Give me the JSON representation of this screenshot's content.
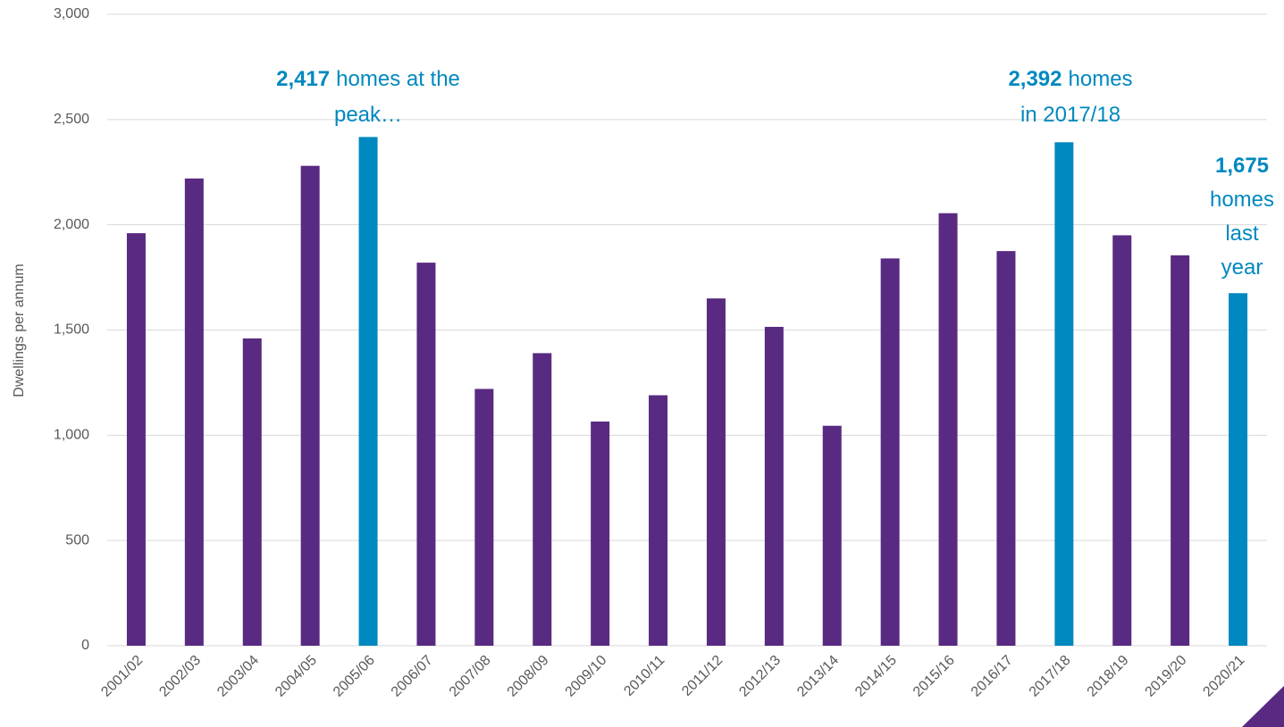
{
  "chart_data": {
    "type": "bar",
    "y_label": "Dwellings per annum",
    "categories": [
      "2001/02",
      "2002/03",
      "2003/04",
      "2004/05",
      "2005/06",
      "2006/07",
      "2007/08",
      "2008/09",
      "2009/10",
      "2010/11",
      "2011/12",
      "2012/13",
      "2013/14",
      "2014/15",
      "2015/16",
      "2016/17",
      "2017/18",
      "2018/19",
      "2019/20",
      "2020/21"
    ],
    "values": [
      1960,
      2220,
      1460,
      2280,
      2417,
      1820,
      1220,
      1390,
      1065,
      1190,
      1650,
      1515,
      1045,
      1840,
      2055,
      1875,
      2392,
      1950,
      1855,
      1675
    ],
    "colors": [
      "#582a82",
      "#582a82",
      "#582a82",
      "#582a82",
      "#0088c0",
      "#582a82",
      "#582a82",
      "#582a82",
      "#582a82",
      "#582a82",
      "#582a82",
      "#582a82",
      "#582a82",
      "#582a82",
      "#582a82",
      "#582a82",
      "#0088c0",
      "#582a82",
      "#582a82",
      "#0088c0"
    ],
    "ylim": [
      0,
      3000
    ],
    "yticks": [
      0,
      500,
      {
        "value": 1000,
        "label": "1,000"
      },
      {
        "value": 1500,
        "label": "1,500"
      },
      {
        "value": 2000,
        "label": "2,000"
      },
      {
        "value": 2500,
        "label": "2,500"
      },
      {
        "value": 3000,
        "label": "3,000"
      }
    ],
    "grid": true,
    "annotations": [
      {
        "bold": "2,417",
        "lines": [
          "homes at the",
          "peak…"
        ]
      },
      {
        "bold": "2,392",
        "lines": [
          "homes",
          "in 2017/18"
        ]
      },
      {
        "bold": "1,675",
        "lines": [
          "homes",
          "last",
          "year"
        ]
      }
    ]
  }
}
